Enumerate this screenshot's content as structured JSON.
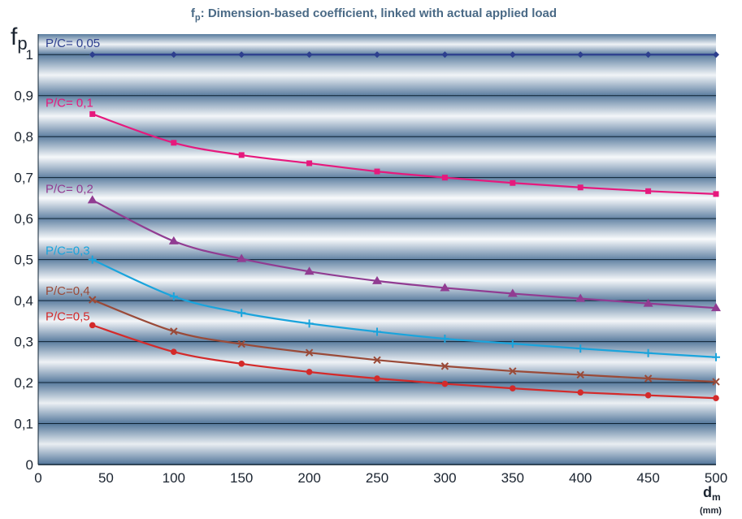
{
  "chart_data": {
    "type": "line",
    "title": "f",
    "title_sub": "p",
    "title_rest": ": Dimension-based coefficient, linked with actual applied load",
    "ylabel_main": "f",
    "ylabel_sub": "p",
    "xlabel_main": "d",
    "xlabel_sub": "m",
    "xlabel_unit": "(mm)",
    "xlim": [
      0,
      500
    ],
    "ylim": [
      0,
      1.05
    ],
    "x_ticks": [
      {
        "value": 0,
        "label": "0"
      },
      {
        "value": 50,
        "label": "50"
      },
      {
        "value": 100,
        "label": "100"
      },
      {
        "value": 150,
        "label": "150"
      },
      {
        "value": 200,
        "label": "200"
      },
      {
        "value": 250,
        "label": "250"
      },
      {
        "value": 300,
        "label": "300"
      },
      {
        "value": 350,
        "label": "350"
      },
      {
        "value": 400,
        "label": "400"
      },
      {
        "value": 450,
        "label": "450"
      },
      {
        "value": 500,
        "label": "500"
      }
    ],
    "y_ticks": [
      {
        "value": 0,
        "label": "0"
      },
      {
        "value": 0.1,
        "label": "0,1"
      },
      {
        "value": 0.2,
        "label": "0,2"
      },
      {
        "value": 0.3,
        "label": "0,3"
      },
      {
        "value": 0.4,
        "label": "0,4"
      },
      {
        "value": 0.5,
        "label": "0,5"
      },
      {
        "value": 0.6,
        "label": "0,6"
      },
      {
        "value": 0.7,
        "label": "0,7"
      },
      {
        "value": 0.8,
        "label": "0,8"
      },
      {
        "value": 0.9,
        "label": "0,9"
      },
      {
        "value": 1.0,
        "label": "1"
      }
    ],
    "grid": "horizontal",
    "x": [
      40,
      100,
      150,
      200,
      250,
      300,
      350,
      400,
      450,
      500
    ],
    "series": [
      {
        "name": "P/C= 0,05",
        "color": "#2d3f8e",
        "marker": "diamond",
        "values": [
          1.0,
          1.0,
          1.0,
          1.0,
          1.0,
          1.0,
          1.0,
          1.0,
          1.0,
          1.0
        ]
      },
      {
        "name": "P/C= 0,1",
        "color": "#e6197d",
        "marker": "square",
        "values": [
          0.855,
          0.785,
          0.755,
          0.735,
          0.715,
          0.7,
          0.687,
          0.676,
          0.667,
          0.66
        ]
      },
      {
        "name": "P/C= 0,2",
        "color": "#913c92",
        "marker": "triangle",
        "values": [
          0.645,
          0.545,
          0.502,
          0.471,
          0.448,
          0.431,
          0.417,
          0.405,
          0.393,
          0.382
        ]
      },
      {
        "name": "P/C=0,3",
        "color": "#1aa4dc",
        "marker": "plus",
        "values": [
          0.5,
          0.41,
          0.37,
          0.344,
          0.324,
          0.307,
          0.295,
          0.283,
          0.272,
          0.262
        ]
      },
      {
        "name": "P/C=0,4",
        "color": "#9a4a38",
        "marker": "cross",
        "values": [
          0.402,
          0.325,
          0.294,
          0.273,
          0.255,
          0.24,
          0.228,
          0.219,
          0.21,
          0.202
        ]
      },
      {
        "name": "P/C=0,5",
        "color": "#d42a2a",
        "marker": "circle",
        "values": [
          0.34,
          0.275,
          0.246,
          0.226,
          0.21,
          0.197,
          0.186,
          0.176,
          0.169,
          0.162
        ]
      }
    ]
  }
}
